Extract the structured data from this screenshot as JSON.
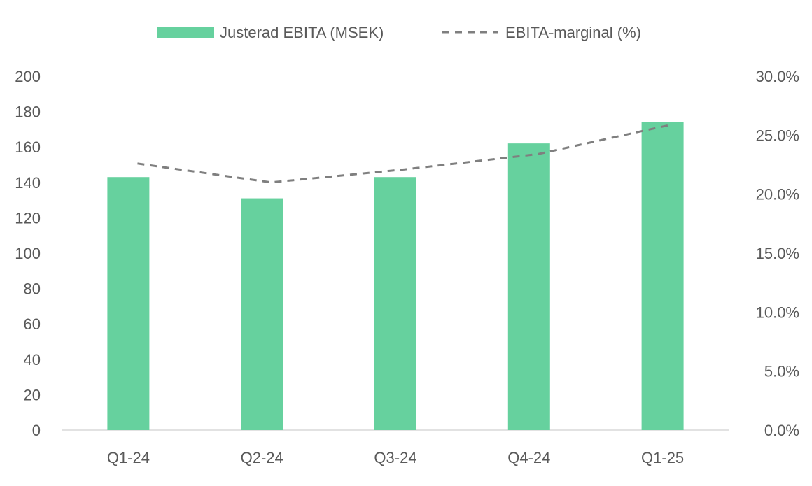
{
  "chart_data": {
    "type": "bar",
    "categories": [
      "Q1-24",
      "Q2-24",
      "Q3-24",
      "Q4-24",
      "Q1-25"
    ],
    "series": [
      {
        "name": "Justerad EBITA (MSEK)",
        "type": "bar",
        "axis": "left",
        "color": "#66d19e",
        "values": [
          143,
          131,
          143,
          162,
          174
        ]
      },
      {
        "name": "EBITA-marginal (%)",
        "type": "line",
        "axis": "right",
        "style": "dashed",
        "color": "#7f7f7f",
        "values": [
          22.6,
          21.0,
          22.1,
          23.4,
          25.9
        ]
      }
    ],
    "y_left": {
      "lim": [
        0,
        200
      ],
      "ticks": [
        "0",
        "20",
        "40",
        "60",
        "80",
        "100",
        "120",
        "140",
        "160",
        "180",
        "200"
      ]
    },
    "y_right": {
      "lim": [
        0,
        30
      ],
      "ticks": [
        "0.0%",
        "5.0%",
        "10.0%",
        "15.0%",
        "20.0%",
        "25.0%",
        "30.0%"
      ]
    },
    "grid": false,
    "legend_position": "top"
  }
}
